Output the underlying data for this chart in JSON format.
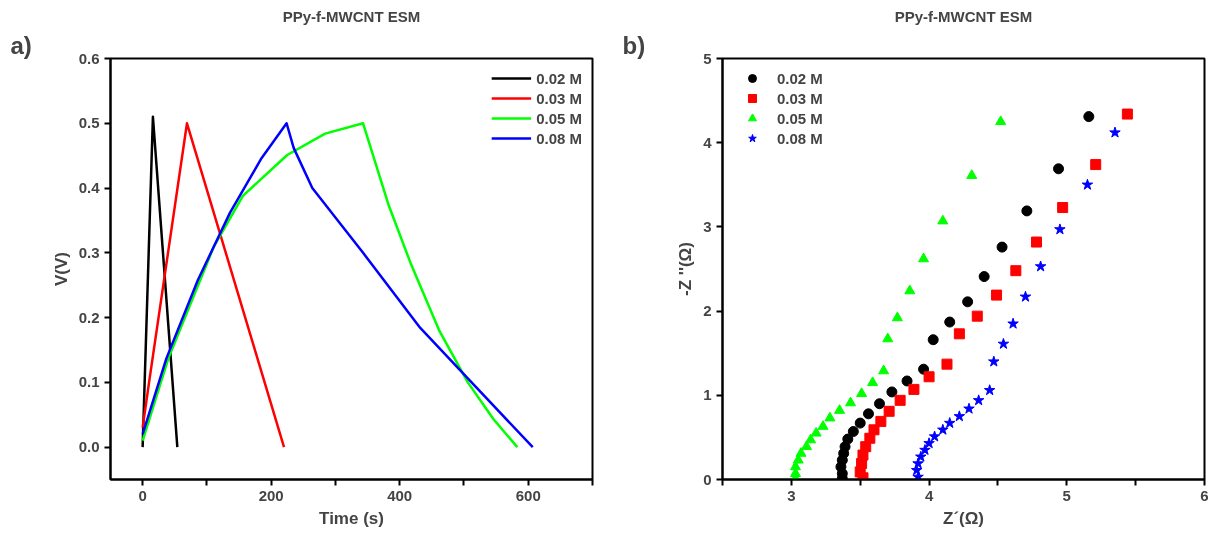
{
  "chart_data": [
    {
      "type": "line",
      "title": "PPy-f-MWCNT ESM",
      "xlabel": "Time (s)",
      "ylabel": "V(V)",
      "annotations": [
        "a)"
      ],
      "xlim": [
        -50,
        700
      ],
      "ylim": [
        -0.05,
        0.6
      ],
      "xticks": [
        0,
        {
          "value": 100,
          "label": null
        },
        200,
        {
          "value": 300,
          "label": null
        },
        400,
        {
          "value": 500,
          "label": null
        },
        600,
        {
          "value": 700,
          "label": null
        }
      ],
      "yticks": [
        "0.0",
        0.1,
        0.2,
        0.3,
        0.4,
        0.5,
        0.6
      ],
      "legend": "top right",
      "grid": false,
      "line_style": "solid",
      "marker": "none",
      "series": [
        {
          "name": "0.02 M",
          "color": "#000000",
          "x": [
            0,
            16,
            54
          ],
          "values": [
            0,
            0.51,
            0
          ]
        },
        {
          "name": "0.03 M",
          "color": "#ff0000",
          "x": [
            0,
            10,
            69,
            220
          ],
          "values": [
            0.03,
            0.1,
            0.5,
            0
          ]
        },
        {
          "name": "0.05 M",
          "color": "#00ff00",
          "x": [
            0,
            40,
            111,
            156,
            225,
            284,
            343,
            383,
            417,
            462,
            506,
            546,
            583
          ],
          "values": [
            0.01,
            0.137,
            0.31,
            0.388,
            0.451,
            0.484,
            0.5,
            0.373,
            0.284,
            0.179,
            0.1,
            0.043,
            0
          ]
        },
        {
          "name": "0.08 M",
          "color": "#0000ff",
          "x": [
            0,
            37,
            86,
            136,
            185,
            224,
            235,
            264,
            343,
            432,
            506,
            607
          ],
          "values": [
            0.02,
            0.137,
            0.258,
            0.362,
            0.446,
            0.5,
            0.462,
            0.4,
            0.3,
            0.184,
            0.106,
            0
          ]
        }
      ]
    },
    {
      "type": "scatter",
      "title": "PPy-f-MWCNT ESM",
      "xlabel": "Z´(Ω)",
      "ylabel": "-Z ''(Ω)",
      "annotations": [
        "b)"
      ],
      "xlim": [
        2.5,
        6
      ],
      "ylim": [
        0,
        5
      ],
      "xticks": [
        {
          "value": 2.5,
          "label": null
        },
        3,
        {
          "value": 3.5,
          "label": null
        },
        4,
        {
          "value": 4.5,
          "label": null
        },
        5,
        {
          "value": 5.5,
          "label": null
        },
        6
      ],
      "yticks": [
        0,
        1,
        2,
        3,
        4,
        5
      ],
      "legend": "top left",
      "grid": false,
      "series": [
        {
          "name": "0.02 M",
          "color": "#000000",
          "marker": "circle",
          "x": [
            5.16,
            4.94,
            4.71,
            4.53,
            4.4,
            4.28,
            4.15,
            4.03,
            3.96,
            3.84,
            3.73,
            3.64,
            3.56,
            3.5,
            3.45,
            3.41,
            3.39,
            3.38,
            3.37,
            3.36,
            3.37,
            3.37
          ],
          "values": [
            4.31,
            3.69,
            3.19,
            2.76,
            2.41,
            2.11,
            1.87,
            1.66,
            1.31,
            1.17,
            1.04,
            0.9,
            0.78,
            0.67,
            0.57,
            0.48,
            0.39,
            0.31,
            0.23,
            0.15,
            0.07,
            0.01
          ]
        },
        {
          "name": "0.03 M",
          "color": "#ff0000",
          "marker": "square",
          "x": [
            5.44,
            5.21,
            4.97,
            4.78,
            4.63,
            4.49,
            4.35,
            4.22,
            4.13,
            4.0,
            3.89,
            3.79,
            3.71,
            3.65,
            3.6,
            3.57,
            3.54,
            3.52,
            3.51,
            3.5,
            3.52
          ],
          "values": [
            4.34,
            3.74,
            3.23,
            2.82,
            2.48,
            2.19,
            1.94,
            1.73,
            1.37,
            1.22,
            1.07,
            0.94,
            0.81,
            0.69,
            0.59,
            0.49,
            0.39,
            0.29,
            0.19,
            0.09,
            0.02
          ]
        },
        {
          "name": "0.05 M",
          "color": "#00ff00",
          "marker": "triangle",
          "x": [
            4.52,
            4.31,
            4.1,
            3.96,
            3.86,
            3.77,
            3.7,
            3.67,
            3.59,
            3.51,
            3.43,
            3.35,
            3.28,
            3.23,
            3.18,
            3.14,
            3.11,
            3.07,
            3.05,
            3.03,
            3.03,
            3.03
          ],
          "values": [
            4.25,
            3.61,
            3.07,
            2.62,
            2.24,
            1.92,
            1.67,
            1.29,
            1.15,
            1.02,
            0.91,
            0.82,
            0.73,
            0.63,
            0.55,
            0.47,
            0.39,
            0.31,
            0.23,
            0.15,
            0.07,
            0.01
          ]
        },
        {
          "name": "0.08 M",
          "color": "#0000ff",
          "marker": "star",
          "x": [
            5.35,
            5.15,
            4.95,
            4.81,
            4.7,
            4.61,
            4.54,
            4.47,
            4.44,
            4.36,
            4.29,
            4.22,
            4.15,
            4.1,
            4.04,
            4.0,
            3.97,
            3.94,
            3.92,
            3.91,
            3.92
          ],
          "values": [
            4.12,
            3.5,
            2.97,
            2.53,
            2.17,
            1.85,
            1.61,
            1.4,
            1.06,
            0.94,
            0.84,
            0.75,
            0.67,
            0.59,
            0.51,
            0.43,
            0.35,
            0.27,
            0.19,
            0.11,
            0.03
          ]
        }
      ]
    }
  ]
}
